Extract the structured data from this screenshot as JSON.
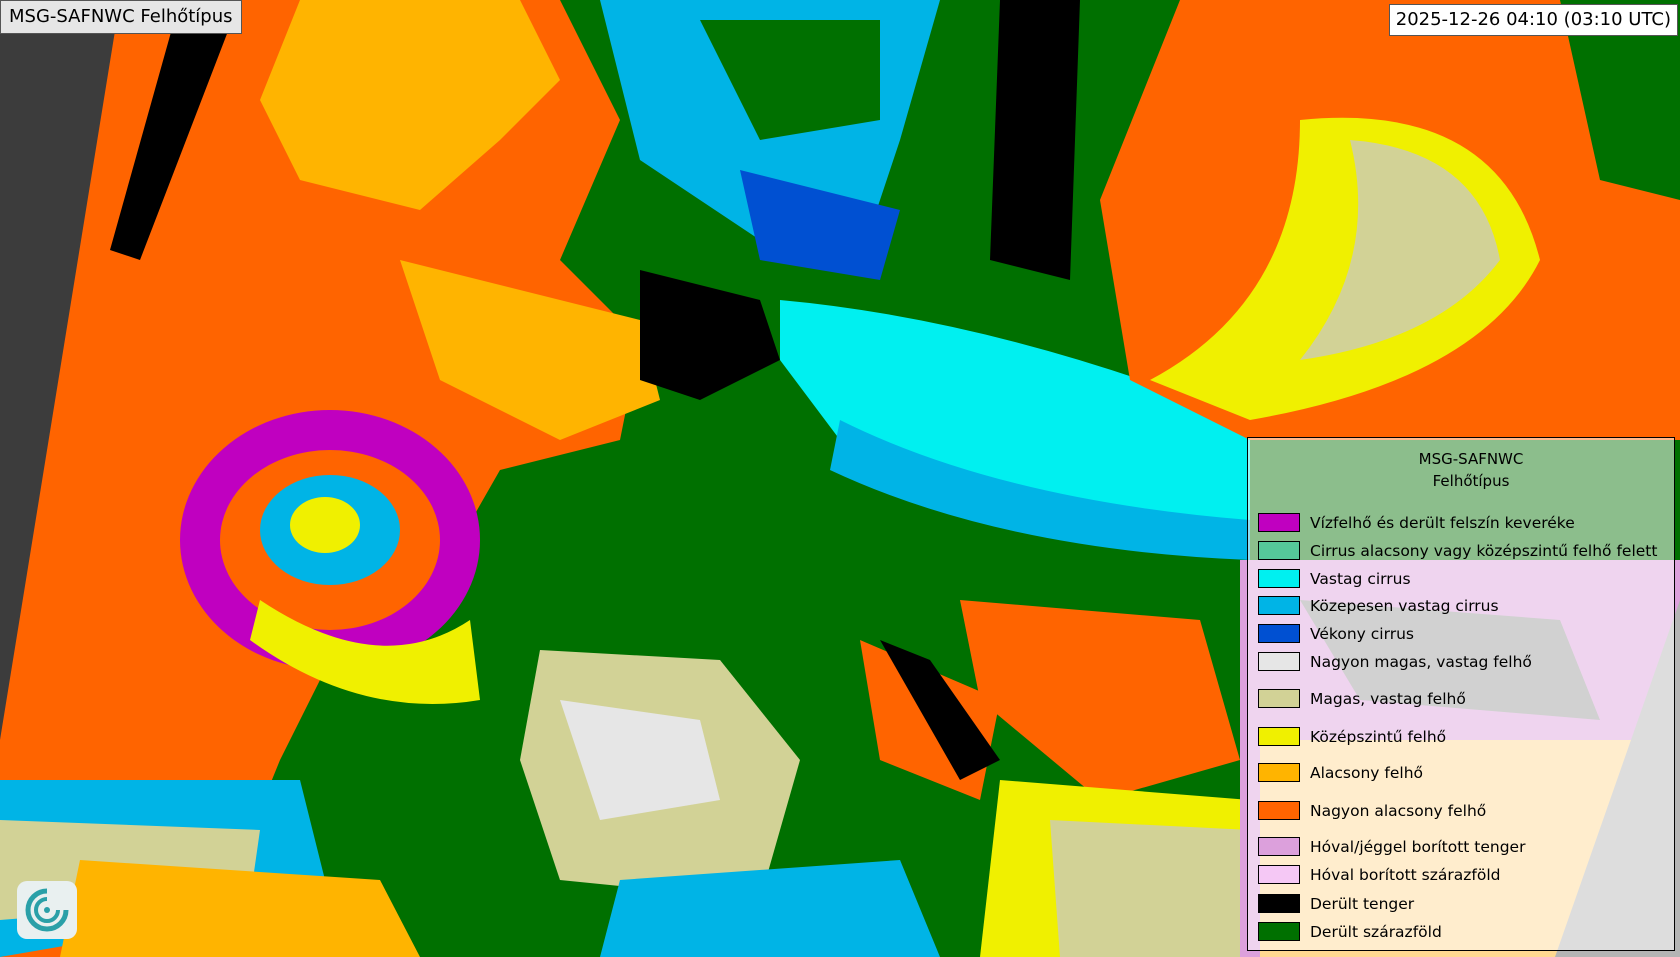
{
  "header": {
    "title": "MSG-SAFNWC Felhőtípus",
    "timestamp": "2025-12-26 04:10 (03:10 UTC)"
  },
  "legend": {
    "title_line1": "MSG-SAFNWC",
    "title_line2": "Felhőtípus",
    "items": [
      {
        "label": "Vízfelhő és derült felszín keveréke",
        "color": "#c000c0"
      },
      {
        "label": "Cirrus alacsony vagy középszintű felhő felett",
        "color": "#55c89a"
      },
      {
        "label": "Vastag cirrus",
        "color": "#00f0f0"
      },
      {
        "label": "Közepesen vastag cirrus",
        "color": "#00b4e6"
      },
      {
        "label": "Vékony cirrus",
        "color": "#0050d2"
      },
      {
        "label": "Nagyon magas, vastag felhő",
        "color": "#e6e6e6"
      },
      {
        "label": "Magas, vastag felhő",
        "color": "#d2d296"
      },
      {
        "label": "Középszintű felhő",
        "color": "#f0f000"
      },
      {
        "label": "Alacsony felhő",
        "color": "#ffb400"
      },
      {
        "label": "Nagyon alacsony felhő",
        "color": "#ff6400"
      },
      {
        "label": "Hóval/jéggel borított tenger",
        "color": "#dca0dc"
      },
      {
        "label": "Hóval borított szárazföld",
        "color": "#f5c8f5"
      },
      {
        "label": "Derült tenger",
        "color": "#000000"
      },
      {
        "label": "Derült szárazföld",
        "color": "#007000"
      }
    ]
  },
  "map": {
    "no_data_color": "#3c3c3c",
    "outside_color": "#b4b4b4"
  },
  "logo": {
    "icon": "swirl-logo-icon"
  }
}
